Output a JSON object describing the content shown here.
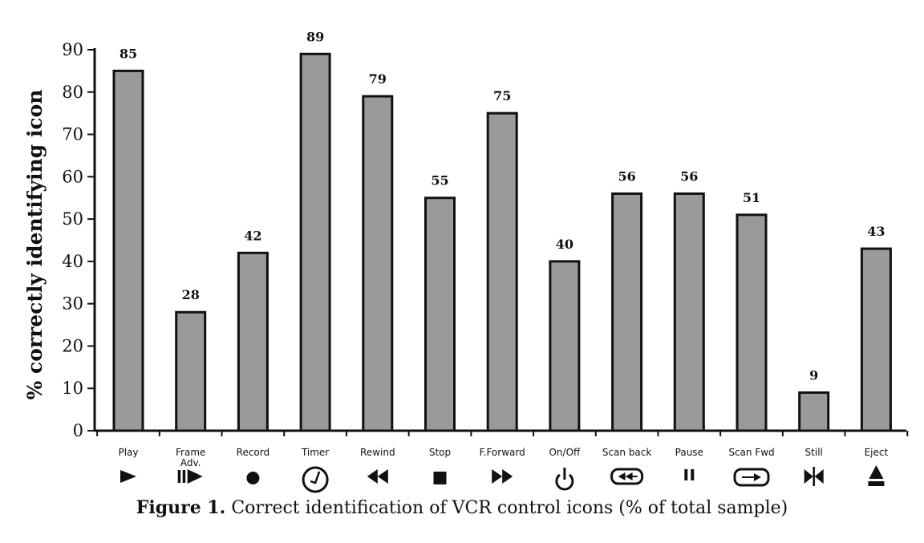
{
  "chart_data": {
    "type": "bar",
    "ylabel": "% correctly identifying icon",
    "xlabel": "",
    "ylim": [
      0,
      90
    ],
    "yticks": [
      0,
      10,
      20,
      30,
      40,
      50,
      60,
      70,
      80,
      90
    ],
    "grid": false,
    "categories": [
      "Play",
      "Frame Adv.",
      "Record",
      "Timer",
      "Rewind",
      "Stop",
      "F.Forward",
      "On/Off",
      "Scan back",
      "Pause",
      "Scan Fwd",
      "Still",
      "Eject"
    ],
    "values": [
      85,
      28,
      42,
      89,
      79,
      55,
      75,
      40,
      56,
      56,
      51,
      9,
      43
    ],
    "icons": [
      "play-icon",
      "frame-advance-icon",
      "record-icon",
      "timer-icon",
      "rewind-icon",
      "stop-icon",
      "fast-forward-icon",
      "power-icon",
      "scan-back-icon",
      "pause-icon",
      "scan-forward-icon",
      "still-icon",
      "eject-icon"
    ],
    "colors": {
      "bar_fill": "#9a9a9a",
      "bar_stroke": "#111111"
    }
  },
  "caption": {
    "prefix": "Figure 1.",
    "text": "Correct identification of VCR control icons (% of total sample)"
  }
}
